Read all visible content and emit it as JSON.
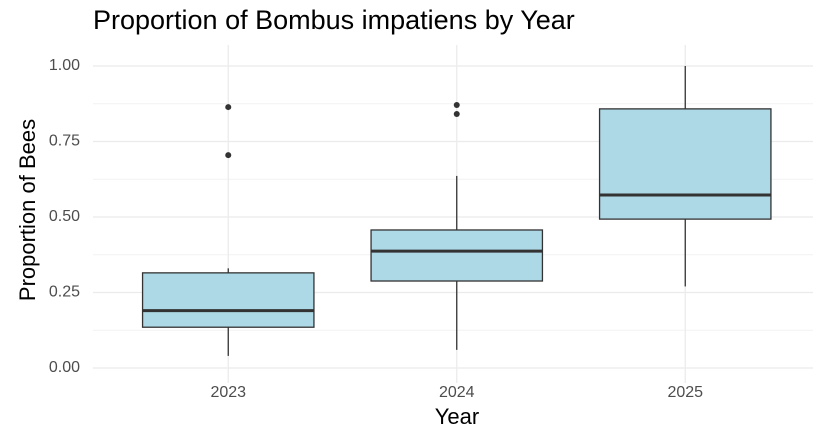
{
  "chart_data": {
    "type": "box",
    "title": "Proportion of Bombus impatiens by Year",
    "xlabel": "Year",
    "ylabel": "Proportion of Bees",
    "categories": [
      "2023",
      "2024",
      "2025"
    ],
    "boxes": [
      {
        "whislo": 0.04,
        "q1": 0.135,
        "median": 0.19,
        "q3": 0.315,
        "whishi": 0.33,
        "outliers": [
          0.705,
          0.864
        ]
      },
      {
        "whislo": 0.06,
        "q1": 0.288,
        "median": 0.387,
        "q3": 0.457,
        "whishi": 0.636,
        "outliers": [
          0.841,
          0.871
        ]
      },
      {
        "whislo": 0.27,
        "q1": 0.493,
        "median": 0.573,
        "q3": 0.858,
        "whishi": 1.0,
        "outliers": []
      }
    ],
    "color": "#add8e6",
    "edge_color": "#333333",
    "ylim": [
      -0.008,
      1.048
    ],
    "yticks": [
      {
        "value": 0,
        "label": "0.00"
      },
      {
        "value": 0.25,
        "label": "0.25"
      },
      {
        "value": 0.5,
        "label": "0.50"
      },
      {
        "value": 0.75,
        "label": "0.75"
      },
      {
        "value": 1,
        "label": "1.00"
      }
    ],
    "minor_yticks": [
      0.125,
      0.375,
      0.625,
      0.875
    ],
    "grid": true
  }
}
